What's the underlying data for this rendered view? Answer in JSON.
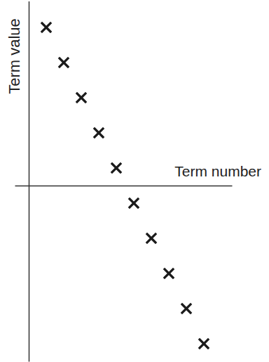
{
  "chart_data": {
    "type": "scatter",
    "x_label": "Term number",
    "y_label": "Term value",
    "x": [
      1,
      2,
      3,
      4,
      5,
      6,
      7,
      8,
      9,
      10
    ],
    "values": [
      9,
      7,
      5,
      3,
      1,
      -1,
      -3,
      -5,
      -7,
      -9
    ],
    "xlim": [
      -0.8,
      11.6
    ],
    "ylim": [
      -10,
      10.5
    ],
    "tick_labels": false,
    "marker": "x",
    "color": "#1a1a1a",
    "grid": false
  }
}
